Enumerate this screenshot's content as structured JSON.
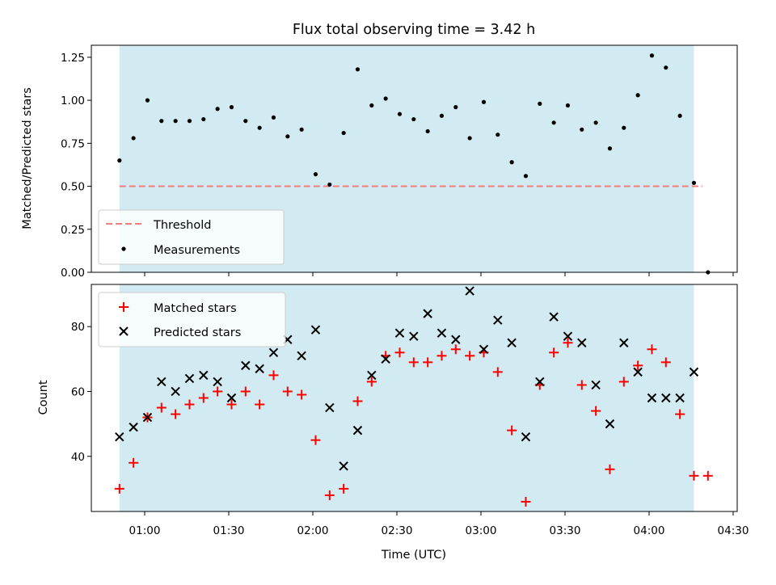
{
  "chart_data": {
    "type": "scatter",
    "title": "Flux total observing time = 3.42 h",
    "xlabel": "Time (UTC)",
    "x_ticks": [
      "01:00",
      "01:30",
      "02:00",
      "02:30",
      "03:00",
      "03:30",
      "04:00",
      "04:30"
    ],
    "observing_window": {
      "start": "00:51",
      "end": "04:16",
      "color": "#add8e6"
    },
    "top_panel": {
      "ylabel": "Matched/Predicted stars",
      "ylim": [
        0,
        1.32
      ],
      "yticks": [
        "0.00",
        "0.25",
        "0.50",
        "0.75",
        "1.00",
        "1.25"
      ],
      "legend_position": "lower-left",
      "threshold": {
        "name": "Threshold",
        "value": 0.5,
        "x_start": "00:51",
        "x_end": "04:19",
        "color": "#f08080"
      },
      "measurements": {
        "name": "Measurements",
        "color": "#000000",
        "x": [
          "00:51",
          "00:56",
          "01:01",
          "01:06",
          "01:11",
          "01:16",
          "01:21",
          "01:26",
          "01:31",
          "01:36",
          "01:41",
          "01:46",
          "01:51",
          "01:56",
          "02:01",
          "02:06",
          "02:11",
          "02:16",
          "02:21",
          "02:26",
          "02:31",
          "02:36",
          "02:41",
          "02:46",
          "02:51",
          "02:56",
          "03:01",
          "03:06",
          "03:11",
          "03:16",
          "03:21",
          "03:26",
          "03:31",
          "03:36",
          "03:41",
          "03:46",
          "03:51",
          "03:56",
          "04:01",
          "04:06",
          "04:11",
          "04:16",
          "04:21"
        ],
        "y": [
          0.65,
          0.78,
          1.0,
          0.88,
          0.88,
          0.88,
          0.89,
          0.95,
          0.96,
          0.88,
          0.84,
          0.9,
          0.79,
          0.83,
          0.57,
          0.51,
          0.81,
          1.18,
          0.97,
          1.01,
          0.92,
          0.89,
          0.82,
          0.91,
          0.96,
          0.78,
          0.99,
          0.8,
          0.64,
          0.56,
          0.98,
          0.87,
          0.97,
          0.83,
          0.87,
          0.72,
          0.84,
          1.03,
          1.26,
          1.19,
          0.91,
          0.52,
          0.0
        ]
      }
    },
    "bottom_panel": {
      "ylabel": "Count",
      "ylim": [
        23,
        93
      ],
      "yticks": [
        "40",
        "60",
        "80"
      ],
      "legend_position": "upper-left",
      "series": [
        {
          "name": "Matched stars",
          "color": "#ff0000",
          "marker": "plus",
          "x": [
            "00:51",
            "00:56",
            "01:01",
            "01:06",
            "01:11",
            "01:16",
            "01:21",
            "01:26",
            "01:31",
            "01:36",
            "01:41",
            "01:46",
            "01:51",
            "01:56",
            "02:01",
            "02:06",
            "02:11",
            "02:16",
            "02:21",
            "02:26",
            "02:31",
            "02:36",
            "02:41",
            "02:46",
            "02:51",
            "02:56",
            "03:01",
            "03:06",
            "03:11",
            "03:16",
            "03:21",
            "03:26",
            "03:31",
            "03:36",
            "03:41",
            "03:46",
            "03:51",
            "03:56",
            "04:01",
            "04:06",
            "04:11",
            "04:16",
            "04:21"
          ],
          "values": [
            30,
            38,
            52,
            55,
            53,
            56,
            58,
            60,
            56,
            60,
            56,
            65,
            60,
            59,
            45,
            28,
            30,
            57,
            63,
            71,
            72,
            69,
            69,
            71,
            73,
            71,
            72,
            66,
            48,
            26,
            62,
            72,
            75,
            62,
            54,
            36,
            63,
            68,
            73,
            69,
            53,
            34,
            34
          ]
        },
        {
          "name": "Predicted stars",
          "color": "#000000",
          "marker": "x",
          "x": [
            "00:51",
            "00:56",
            "01:01",
            "01:06",
            "01:11",
            "01:16",
            "01:21",
            "01:26",
            "01:31",
            "01:36",
            "01:41",
            "01:46",
            "01:51",
            "01:56",
            "02:01",
            "02:06",
            "02:11",
            "02:16",
            "02:21",
            "02:26",
            "02:31",
            "02:36",
            "02:41",
            "02:46",
            "02:51",
            "02:56",
            "03:01",
            "03:06",
            "03:11",
            "03:16",
            "03:21",
            "03:26",
            "03:31",
            "03:36",
            "03:41",
            "03:46",
            "03:51",
            "03:56",
            "04:01",
            "04:06",
            "04:11",
            "04:16"
          ],
          "values": [
            46,
            49,
            52,
            63,
            60,
            64,
            65,
            63,
            58,
            68,
            67,
            72,
            76,
            71,
            79,
            55,
            37,
            48,
            65,
            70,
            78,
            77,
            84,
            78,
            76,
            91,
            73,
            82,
            75,
            46,
            63,
            83,
            77,
            75,
            62,
            50,
            75,
            66,
            58,
            58,
            58,
            66
          ]
        }
      ]
    }
  }
}
